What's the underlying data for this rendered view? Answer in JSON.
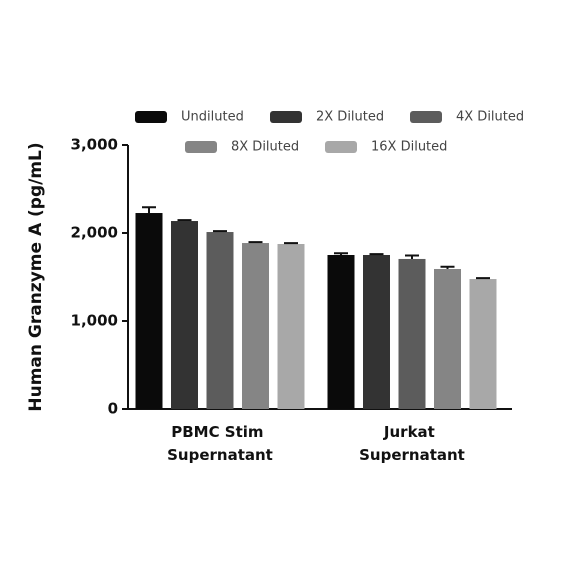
{
  "chart_data": {
    "type": "bar",
    "y_label": "Human Granzyme A (pg/mL)",
    "categories": [
      "PBMC Stim Supernatant",
      "Jurkat Supernatant"
    ],
    "series": [
      {
        "name": "Undiluted",
        "color": "#0a0a0a",
        "values": [
          2227,
          1750
        ],
        "errors": [
          65,
          20
        ]
      },
      {
        "name": "2X Diluted",
        "color": "#333333",
        "values": [
          2136,
          1750
        ],
        "errors": [
          10,
          10
        ]
      },
      {
        "name": "4X Diluted",
        "color": "#5c5c5c",
        "values": [
          2011,
          1705
        ],
        "errors": [
          10,
          40
        ]
      },
      {
        "name": "8X Diluted",
        "color": "#858585",
        "values": [
          1886,
          1591
        ],
        "errors": [
          10,
          25
        ]
      },
      {
        "name": "16X Diluted",
        "color": "#a8a8a8",
        "values": [
          1875,
          1477
        ],
        "errors": [
          10,
          10
        ]
      }
    ],
    "ylim": [
      0,
      3000
    ],
    "yticks": [
      0,
      {
        "value": 1000,
        "label": "1,000"
      },
      {
        "value": 2000,
        "label": "2,000"
      },
      {
        "value": 3000,
        "label": "3,000"
      }
    ]
  }
}
